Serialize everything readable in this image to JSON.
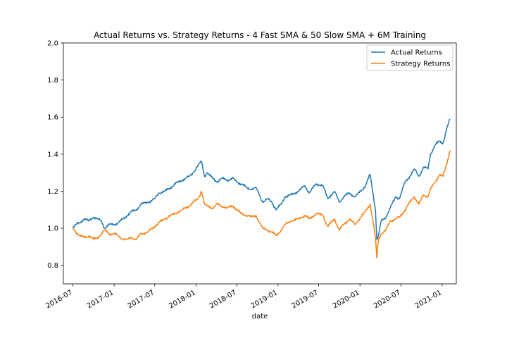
{
  "chart_data": {
    "type": "line",
    "title": "Actual Returns vs. Strategy Returns - 4 Fast SMA & 50 Slow SMA + 6M Training",
    "xlabel": "date",
    "ylabel": "",
    "xlim": [
      "2016-05-20",
      "2021-03-05"
    ],
    "ylim": [
      0.7,
      2.0
    ],
    "yticks": [
      0.8,
      1.0,
      1.2,
      1.4,
      1.6,
      1.8,
      2.0
    ],
    "ytick_labels": [
      "0.8",
      "1.0",
      "1.2",
      "1.4",
      "1.6",
      "1.8",
      "2.0"
    ],
    "xticks": [
      "2016-07-01",
      "2017-01-01",
      "2017-07-01",
      "2018-01-01",
      "2018-07-01",
      "2019-01-01",
      "2019-07-01",
      "2020-01-01",
      "2020-07-01",
      "2021-01-01"
    ],
    "xtick_labels": [
      "2016-07",
      "2017-01",
      "2017-07",
      "2018-01",
      "2018-07",
      "2019-01",
      "2019-07",
      "2020-01",
      "2020-07",
      "2021-01"
    ],
    "grid": false,
    "legend_position": "top-right",
    "series": [
      {
        "name": "Actual Returns",
        "color": "#1f77b4",
        "points": [
          [
            "2016-07-01",
            1.0
          ],
          [
            "2016-07-15",
            1.02
          ],
          [
            "2016-08-01",
            1.03
          ],
          [
            "2016-08-20",
            1.05
          ],
          [
            "2016-09-10",
            1.04
          ],
          [
            "2016-10-01",
            1.06
          ],
          [
            "2016-10-20",
            1.05
          ],
          [
            "2016-11-05",
            1.04
          ],
          [
            "2016-11-20",
            1.0
          ],
          [
            "2016-12-10",
            1.02
          ],
          [
            "2017-01-01",
            1.02
          ],
          [
            "2017-01-20",
            1.03
          ],
          [
            "2017-02-10",
            1.05
          ],
          [
            "2017-03-01",
            1.07
          ],
          [
            "2017-03-20",
            1.09
          ],
          [
            "2017-04-10",
            1.1
          ],
          [
            "2017-05-01",
            1.13
          ],
          [
            "2017-06-01",
            1.14
          ],
          [
            "2017-07-01",
            1.16
          ],
          [
            "2017-07-20",
            1.19
          ],
          [
            "2017-08-15",
            1.2
          ],
          [
            "2017-09-10",
            1.22
          ],
          [
            "2017-10-01",
            1.24
          ],
          [
            "2017-11-01",
            1.26
          ],
          [
            "2017-12-01",
            1.28
          ],
          [
            "2017-12-20",
            1.3
          ],
          [
            "2018-01-10",
            1.34
          ],
          [
            "2018-01-25",
            1.36
          ],
          [
            "2018-02-08",
            1.28
          ],
          [
            "2018-02-20",
            1.3
          ],
          [
            "2018-03-15",
            1.27
          ],
          [
            "2018-04-05",
            1.25
          ],
          [
            "2018-04-25",
            1.27
          ],
          [
            "2018-05-20",
            1.26
          ],
          [
            "2018-06-15",
            1.27
          ],
          [
            "2018-07-01",
            1.25
          ],
          [
            "2018-07-20",
            1.24
          ],
          [
            "2018-08-15",
            1.22
          ],
          [
            "2018-09-05",
            1.21
          ],
          [
            "2018-09-25",
            1.22
          ],
          [
            "2018-10-10",
            1.18
          ],
          [
            "2018-10-25",
            1.14
          ],
          [
            "2018-11-15",
            1.16
          ],
          [
            "2018-12-05",
            1.14
          ],
          [
            "2018-12-24",
            1.1
          ],
          [
            "2019-01-15",
            1.13
          ],
          [
            "2019-02-01",
            1.17
          ],
          [
            "2019-03-01",
            1.18
          ],
          [
            "2019-04-01",
            1.2
          ],
          [
            "2019-05-01",
            1.23
          ],
          [
            "2019-05-20",
            1.19
          ],
          [
            "2019-06-20",
            1.24
          ],
          [
            "2019-07-20",
            1.23
          ],
          [
            "2019-08-10",
            1.16
          ],
          [
            "2019-09-10",
            1.2
          ],
          [
            "2019-10-01",
            1.14
          ],
          [
            "2019-10-20",
            1.17
          ],
          [
            "2019-11-15",
            1.19
          ],
          [
            "2019-12-10",
            1.17
          ],
          [
            "2020-01-05",
            1.2
          ],
          [
            "2020-01-25",
            1.23
          ],
          [
            "2020-02-15",
            1.29
          ],
          [
            "2020-02-25",
            1.21
          ],
          [
            "2020-03-10",
            1.1
          ],
          [
            "2020-03-16",
            0.94
          ],
          [
            "2020-03-23",
            0.96
          ],
          [
            "2020-04-05",
            1.04
          ],
          [
            "2020-04-25",
            1.06
          ],
          [
            "2020-05-15",
            1.11
          ],
          [
            "2020-06-08",
            1.17
          ],
          [
            "2020-06-25",
            1.16
          ],
          [
            "2020-07-20",
            1.25
          ],
          [
            "2020-08-10",
            1.28
          ],
          [
            "2020-08-30",
            1.32
          ],
          [
            "2020-09-20",
            1.28
          ],
          [
            "2020-10-10",
            1.33
          ],
          [
            "2020-10-30",
            1.32
          ],
          [
            "2020-11-10",
            1.4
          ],
          [
            "2020-12-01",
            1.45
          ],
          [
            "2020-12-20",
            1.47
          ],
          [
            "2021-01-05",
            1.46
          ],
          [
            "2021-01-20",
            1.53
          ],
          [
            "2021-02-05",
            1.59
          ]
        ]
      },
      {
        "name": "Strategy Returns",
        "color": "#ff7f0e",
        "points": [
          [
            "2016-07-01",
            1.0
          ],
          [
            "2016-07-15",
            0.98
          ],
          [
            "2016-08-01",
            0.96
          ],
          [
            "2016-08-20",
            0.95
          ],
          [
            "2016-09-10",
            0.96
          ],
          [
            "2016-10-01",
            0.94
          ],
          [
            "2016-10-20",
            0.95
          ],
          [
            "2016-11-05",
            0.97
          ],
          [
            "2016-11-20",
            0.99
          ],
          [
            "2016-12-10",
            0.97
          ],
          [
            "2017-01-01",
            0.97
          ],
          [
            "2017-01-20",
            0.96
          ],
          [
            "2017-02-10",
            0.94
          ],
          [
            "2017-03-01",
            0.94
          ],
          [
            "2017-03-20",
            0.95
          ],
          [
            "2017-04-10",
            0.94
          ],
          [
            "2017-05-01",
            0.97
          ],
          [
            "2017-06-01",
            0.98
          ],
          [
            "2017-07-01",
            1.01
          ],
          [
            "2017-07-20",
            1.03
          ],
          [
            "2017-08-15",
            1.05
          ],
          [
            "2017-09-10",
            1.07
          ],
          [
            "2017-10-01",
            1.08
          ],
          [
            "2017-11-01",
            1.1
          ],
          [
            "2017-12-01",
            1.12
          ],
          [
            "2017-12-20",
            1.14
          ],
          [
            "2018-01-10",
            1.16
          ],
          [
            "2018-01-25",
            1.2
          ],
          [
            "2018-02-08",
            1.13
          ],
          [
            "2018-02-20",
            1.12
          ],
          [
            "2018-03-15",
            1.11
          ],
          [
            "2018-04-05",
            1.13
          ],
          [
            "2018-04-25",
            1.12
          ],
          [
            "2018-05-20",
            1.11
          ],
          [
            "2018-06-15",
            1.12
          ],
          [
            "2018-07-01",
            1.1
          ],
          [
            "2018-07-20",
            1.08
          ],
          [
            "2018-08-15",
            1.07
          ],
          [
            "2018-09-05",
            1.06
          ],
          [
            "2018-09-25",
            1.07
          ],
          [
            "2018-10-10",
            1.03
          ],
          [
            "2018-10-25",
            1.0
          ],
          [
            "2018-11-15",
            0.99
          ],
          [
            "2018-12-05",
            0.98
          ],
          [
            "2018-12-24",
            0.96
          ],
          [
            "2019-01-15",
            0.99
          ],
          [
            "2019-02-01",
            1.02
          ],
          [
            "2019-03-01",
            1.04
          ],
          [
            "2019-04-01",
            1.05
          ],
          [
            "2019-05-01",
            1.07
          ],
          [
            "2019-05-20",
            1.05
          ],
          [
            "2019-06-20",
            1.08
          ],
          [
            "2019-07-20",
            1.07
          ],
          [
            "2019-08-10",
            1.01
          ],
          [
            "2019-09-10",
            1.05
          ],
          [
            "2019-10-01",
            0.99
          ],
          [
            "2019-10-20",
            1.02
          ],
          [
            "2019-11-15",
            1.05
          ],
          [
            "2019-12-10",
            1.02
          ],
          [
            "2020-01-05",
            1.06
          ],
          [
            "2020-01-25",
            1.09
          ],
          [
            "2020-02-15",
            1.13
          ],
          [
            "2020-02-25",
            1.06
          ],
          [
            "2020-03-10",
            0.95
          ],
          [
            "2020-03-16",
            0.84
          ],
          [
            "2020-03-23",
            0.94
          ],
          [
            "2020-04-05",
            0.97
          ],
          [
            "2020-04-25",
            0.99
          ],
          [
            "2020-05-15",
            1.04
          ],
          [
            "2020-06-08",
            1.05
          ],
          [
            "2020-06-25",
            1.06
          ],
          [
            "2020-07-20",
            1.1
          ],
          [
            "2020-08-10",
            1.14
          ],
          [
            "2020-08-30",
            1.17
          ],
          [
            "2020-09-20",
            1.13
          ],
          [
            "2020-10-10",
            1.18
          ],
          [
            "2020-10-30",
            1.17
          ],
          [
            "2020-11-10",
            1.21
          ],
          [
            "2020-12-01",
            1.25
          ],
          [
            "2020-12-20",
            1.29
          ],
          [
            "2021-01-05",
            1.28
          ],
          [
            "2021-01-20",
            1.34
          ],
          [
            "2021-02-05",
            1.42
          ]
        ]
      }
    ]
  }
}
